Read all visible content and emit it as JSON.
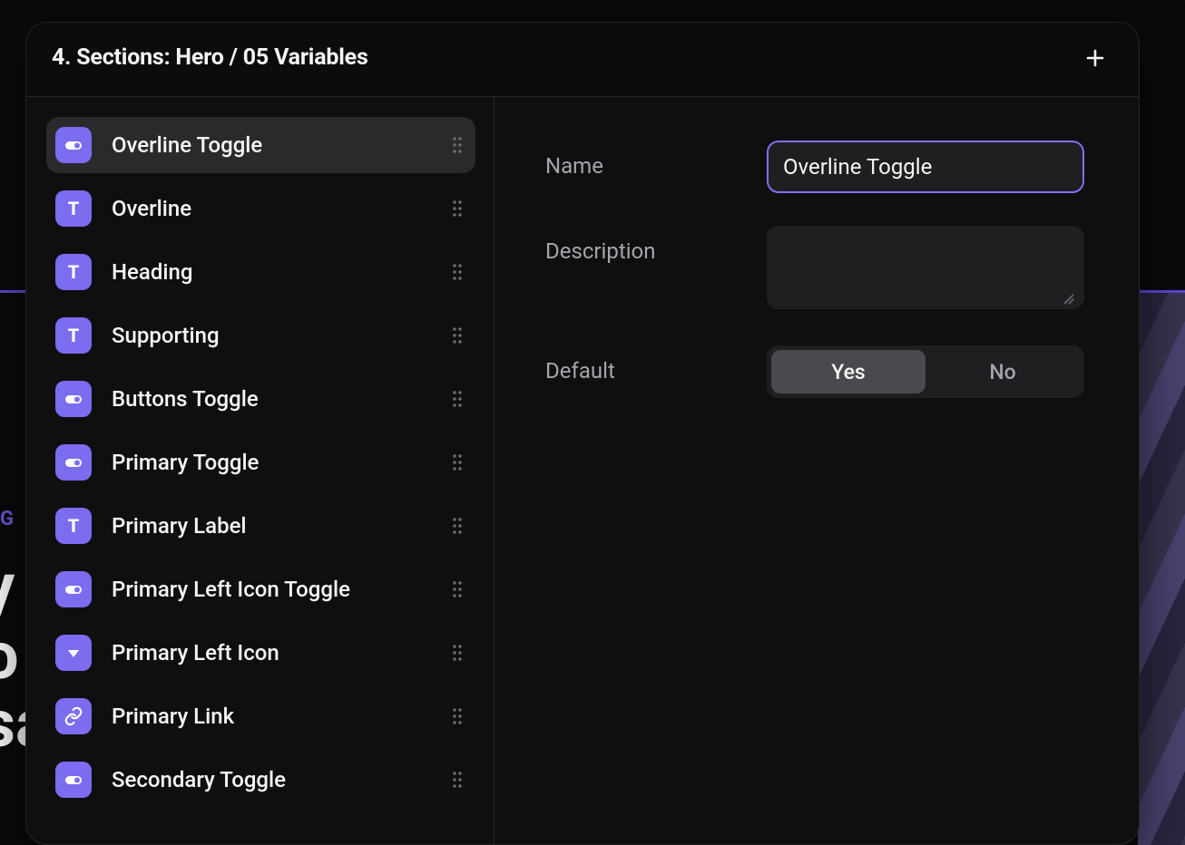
{
  "colors": {
    "bg_body": "#0a0a0a",
    "bg_panel": "#0f0f10",
    "bg_item_selected": "#2a2a2d",
    "bg_input": "#1f1f22",
    "border_input_focus": "#816ff0",
    "icon_bg": "#7c6cf0",
    "icon_fg": "#ffffff",
    "text_primary": "#f5f5f7",
    "text_secondary": "#a5a5ad"
  },
  "panel": {
    "title": "4. Sections: Hero / 05 Variables"
  },
  "sidebar": {
    "items": [
      {
        "label": "Overline Toggle",
        "icon": "toggle",
        "selected": true
      },
      {
        "label": "Overline",
        "icon": "text",
        "selected": false
      },
      {
        "label": "Heading",
        "icon": "text",
        "selected": false
      },
      {
        "label": "Supporting",
        "icon": "text",
        "selected": false
      },
      {
        "label": "Buttons Toggle",
        "icon": "toggle",
        "selected": false
      },
      {
        "label": "Primary Toggle",
        "icon": "toggle",
        "selected": false
      },
      {
        "label": "Primary Label",
        "icon": "text",
        "selected": false
      },
      {
        "label": "Primary Left Icon Toggle",
        "icon": "toggle",
        "selected": false
      },
      {
        "label": "Primary Left Icon",
        "icon": "dropdown",
        "selected": false
      },
      {
        "label": "Primary Link",
        "icon": "link",
        "selected": false
      },
      {
        "label": "Secondary Toggle",
        "icon": "toggle",
        "selected": false
      }
    ]
  },
  "detail": {
    "fields": {
      "name": {
        "label": "Name",
        "value": "Overline Toggle"
      },
      "description": {
        "label": "Description",
        "value": ""
      },
      "default": {
        "label": "Default",
        "options": [
          "Yes",
          "No"
        ],
        "value": "Yes"
      }
    }
  },
  "backdrop": {
    "overline_fragment": "G R",
    "big_lines": [
      "y",
      "o",
      "sa"
    ]
  }
}
